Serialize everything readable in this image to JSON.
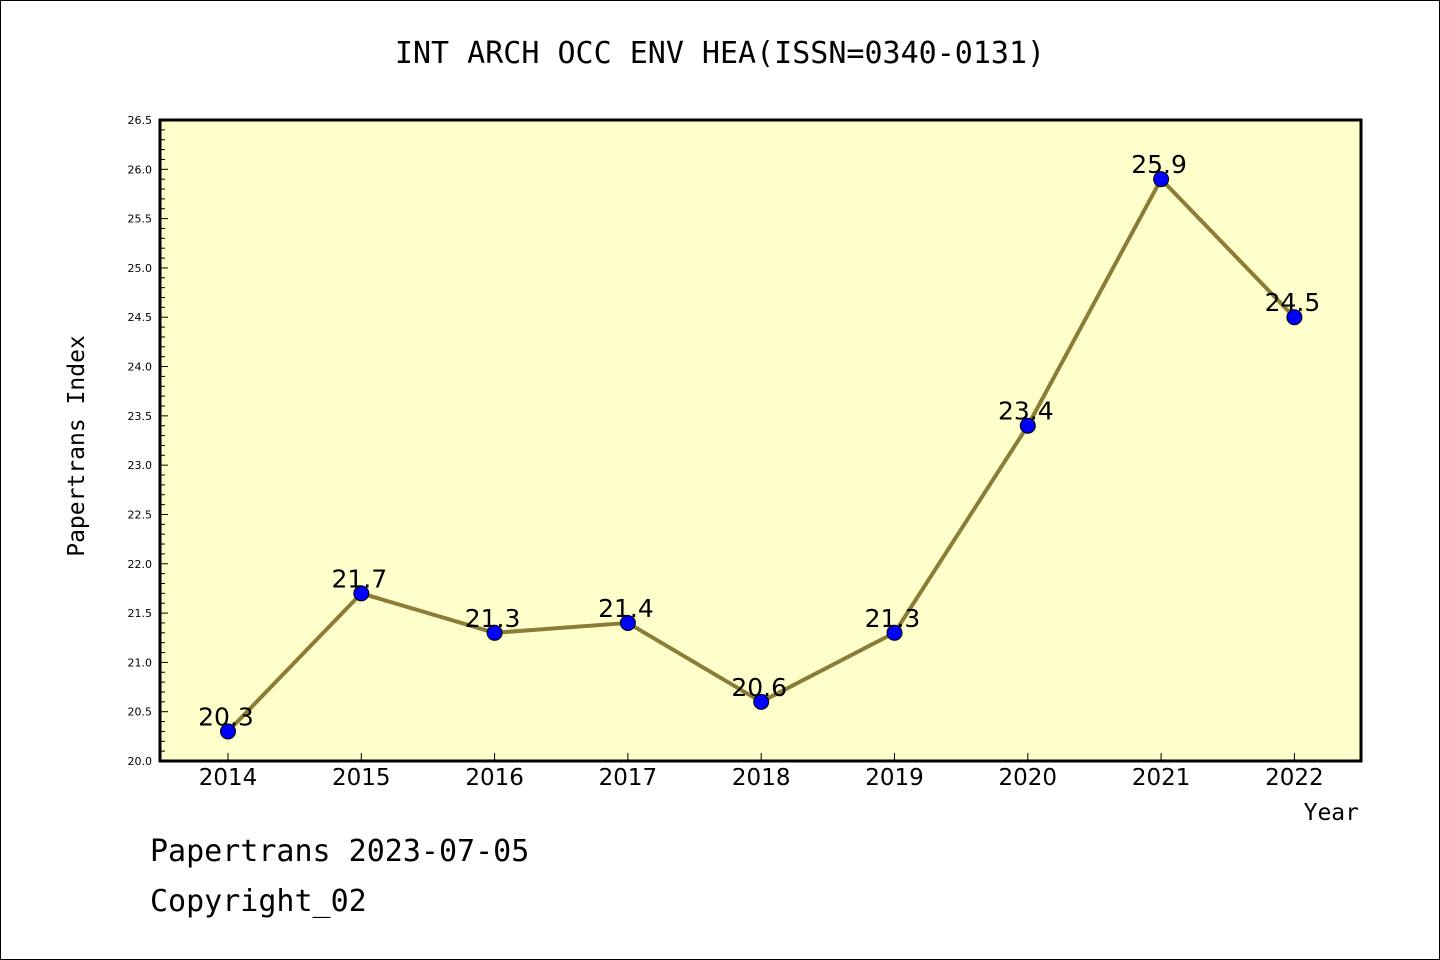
{
  "chart_data": {
    "type": "line",
    "title": "INT ARCH OCC ENV HEA(ISSN=0340-0131)",
    "xlabel": "Year",
    "ylabel": "Papertrans Index",
    "categories": [
      "2014",
      "2015",
      "2016",
      "2017",
      "2018",
      "2019",
      "2020",
      "2021",
      "2022"
    ],
    "values": [
      20.3,
      21.7,
      21.3,
      21.4,
      20.6,
      21.3,
      23.4,
      25.9,
      24.5
    ],
    "data_labels": [
      "20.3",
      "21.7",
      "21.3",
      "21.4",
      "20.6",
      "21.3",
      "23.4",
      "25.9",
      "24.5"
    ],
    "ylim": [
      20.0,
      26.5
    ],
    "yticks": [
      "20.0",
      "20.5",
      "21.0",
      "21.5",
      "22.0",
      "22.5",
      "23.0",
      "23.5",
      "24.0",
      "24.5",
      "25.0",
      "25.5",
      "26.0",
      "26.5"
    ],
    "grid": false,
    "legend": "none",
    "colors": {
      "plot_background": "#ffffcc",
      "line": "#8b7d35",
      "marker": "#0000ff"
    }
  },
  "footer": {
    "line1": "Papertrans 2023-07-05",
    "line2": "Copyright_02"
  }
}
